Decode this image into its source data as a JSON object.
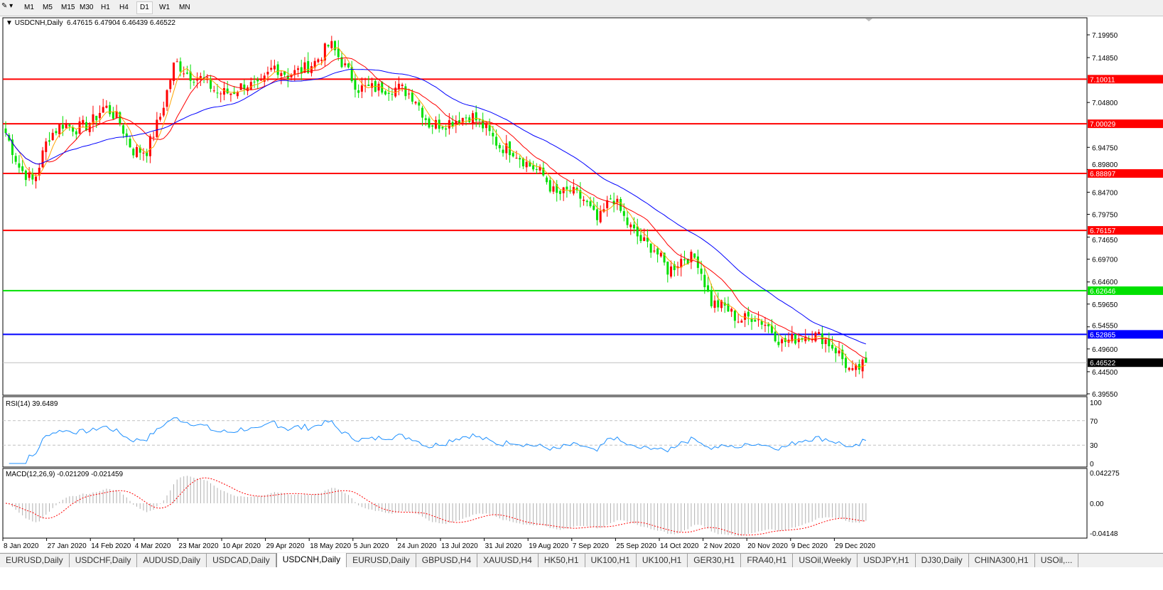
{
  "toolbar": {
    "timeframes": [
      "M1",
      "M5",
      "M15",
      "M30",
      "H1",
      "H4",
      "D1",
      "W1",
      "MN"
    ],
    "active": "D1"
  },
  "chart": {
    "symbol_label": "USDCNH,Daily",
    "ohlc": "6.47615 6.47904 6.46439 6.46522",
    "price_ticks": [
      "7.19950",
      "7.14850",
      "7.04800",
      "6.94750",
      "6.89800",
      "6.84700",
      "6.79750",
      "6.74650",
      "6.69700",
      "6.64600",
      "6.59650",
      "6.54550",
      "6.49600",
      "6.44500",
      "6.39550"
    ],
    "levels": [
      {
        "price": 7.10011,
        "label": "7.10011",
        "color": "#ff0000"
      },
      {
        "price": 7.00029,
        "label": "7.00029",
        "color": "#ff0000"
      },
      {
        "price": 6.88897,
        "label": "6.88897",
        "color": "#ff0000"
      },
      {
        "price": 6.76157,
        "label": "6.76157",
        "color": "#ff0000"
      },
      {
        "price": 6.62646,
        "label": "6.62646",
        "color": "#00e000"
      },
      {
        "price": 6.52865,
        "label": "6.52865",
        "color": "#0000ff"
      }
    ],
    "current_price": {
      "price": 6.46522,
      "label": "6.46522"
    },
    "colors": {
      "bull": "#ff0000",
      "bear": "#00e000",
      "ma_fast": "#ffa500",
      "ma_mid": "#ff0000",
      "ma_slow": "#0000ff"
    },
    "date_labels": [
      "8 Jan 2020",
      "27 Jan 2020",
      "14 Feb 2020",
      "4 Mar 2020",
      "23 Mar 2020",
      "10 Apr 2020",
      "29 Apr 2020",
      "18 May 2020",
      "5 Jun 2020",
      "24 Jun 2020",
      "13 Jul 2020",
      "31 Jul 2020",
      "19 Aug 2020",
      "7 Sep 2020",
      "25 Sep 2020",
      "14 Oct 2020",
      "2 Nov 2020",
      "20 Nov 2020",
      "9 Dec 2020",
      "29 Dec 2020"
    ],
    "weekly_closes": [
      6.98,
      6.9,
      6.87,
      6.97,
      7.0,
      6.99,
      7.0,
      7.04,
      7.01,
      6.94,
      6.94,
      7.02,
      7.14,
      7.11,
      7.1,
      7.07,
      7.07,
      7.09,
      7.08,
      7.13,
      7.11,
      7.12,
      7.14,
      7.18,
      7.13,
      7.08,
      7.08,
      7.08,
      7.08,
      7.06,
      7.0,
      7.0,
      7.01,
      7.02,
      6.99,
      6.95,
      6.94,
      6.91,
      6.89,
      6.84,
      6.85,
      6.83,
      6.78,
      6.84,
      6.78,
      6.74,
      6.72,
      6.67,
      6.7,
      6.7,
      6.6,
      6.59,
      6.56,
      6.57,
      6.55,
      6.51,
      6.52,
      6.53,
      6.52,
      6.49,
      6.44,
      6.465
    ]
  },
  "rsi": {
    "label": "RSI(14) 39.6489",
    "ticks": [
      "100",
      "70",
      "30",
      "0"
    ],
    "color": "#1e90ff"
  },
  "macd": {
    "label": "MACD(12,26,9) -0.021209 -0.021459",
    "ticks": [
      "0.042275",
      "0.00",
      "-0.04148"
    ]
  },
  "tabs": [
    "EURUSD,Daily",
    "USDCHF,Daily",
    "AUDUSD,Daily",
    "USDCAD,Daily",
    "USDCNH,Daily",
    "EURUSD,Daily",
    "GBPUSD,H4",
    "XAUUSD,H4",
    "HK50,H1",
    "UK100,H1",
    "UK100,H1",
    "GER30,H1",
    "FRA40,H1",
    "USOil,Weekly",
    "USDJPY,H1",
    "DJ30,Daily",
    "CHINA300,H1",
    "USOil,..."
  ],
  "active_tab": "USDCNH,Daily"
}
